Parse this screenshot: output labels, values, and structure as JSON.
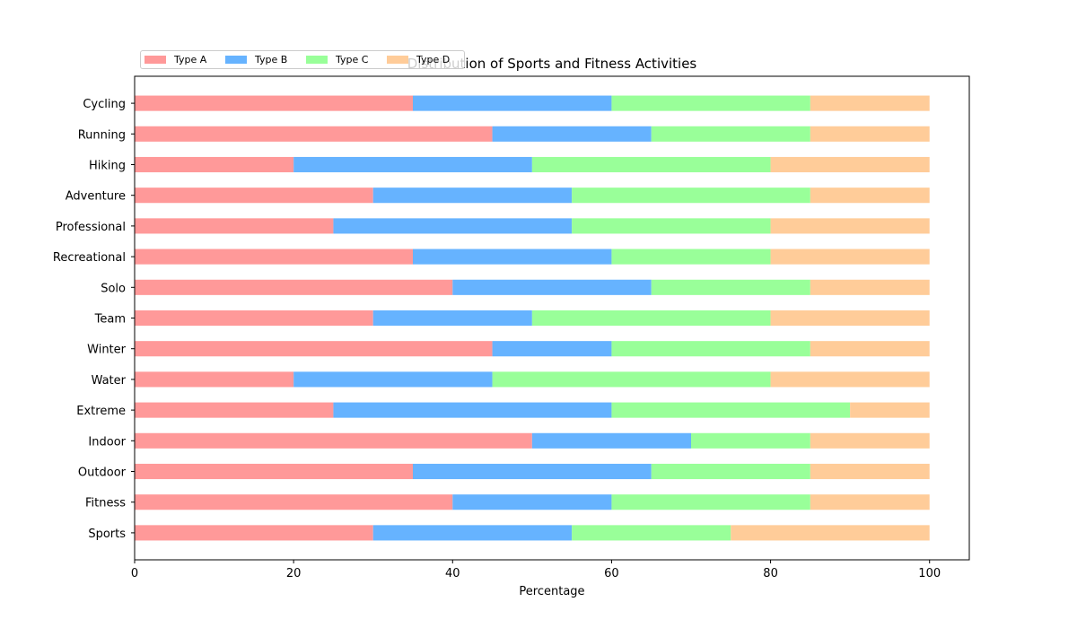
{
  "chart_data": {
    "type": "bar",
    "orientation": "horizontal",
    "stacked": true,
    "title": "Distribution of Sports and Fitness Activities",
    "xlabel": "Percentage",
    "ylabel": "",
    "xlim": [
      0,
      105
    ],
    "xticks": [
      "0",
      "20",
      "40",
      "60",
      "80",
      "100"
    ],
    "categories": [
      "Sports",
      "Fitness",
      "Outdoor",
      "Indoor",
      "Extreme",
      "Water",
      "Winter",
      "Team",
      "Solo",
      "Recreational",
      "Professional",
      "Adventure",
      "Hiking",
      "Running",
      "Cycling"
    ],
    "series": [
      {
        "name": "Type A",
        "color": "#ff9999",
        "values": [
          30,
          40,
          35,
          50,
          25,
          20,
          45,
          30,
          40,
          35,
          25,
          30,
          20,
          45,
          35
        ]
      },
      {
        "name": "Type B",
        "color": "#66b3ff",
        "values": [
          25,
          20,
          30,
          20,
          35,
          25,
          15,
          20,
          25,
          25,
          30,
          25,
          30,
          20,
          25
        ]
      },
      {
        "name": "Type C",
        "color": "#99ff99",
        "values": [
          20,
          25,
          20,
          15,
          30,
          35,
          25,
          30,
          20,
          20,
          25,
          30,
          30,
          20,
          25
        ]
      },
      {
        "name": "Type D",
        "color": "#ffcc99",
        "values": [
          25,
          15,
          15,
          15,
          10,
          20,
          15,
          20,
          15,
          20,
          20,
          15,
          20,
          15,
          15
        ]
      }
    ],
    "legend": {
      "position": "upper-left",
      "columns": 4
    },
    "grid": false
  }
}
